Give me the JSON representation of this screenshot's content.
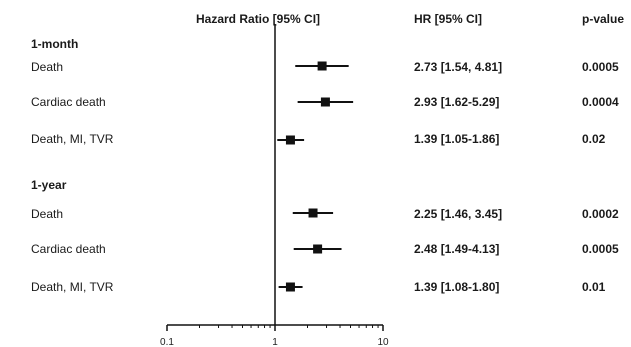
{
  "chart_data": {
    "type": "forest",
    "header": {
      "plot": "Hazard Ratio [95% CI]",
      "hr_col": "HR [95% CI]",
      "p_col": "p-value"
    },
    "xaxis": {
      "scale": "log",
      "range": [
        0.1,
        10
      ],
      "ticks": [
        "0.1",
        "1",
        "10"
      ],
      "reference_line": 1
    },
    "groups": [
      {
        "label": "1-month",
        "rows": [
          {
            "label": "Death",
            "hr": 2.73,
            "lo": 1.54,
            "hi": 4.81,
            "hr_text": "2.73 [1.54, 4.81]",
            "p": "0.0005"
          },
          {
            "label": "Cardiac death",
            "hr": 2.93,
            "lo": 1.62,
            "hi": 5.29,
            "hr_text": "2.93 [1.62-5.29]",
            "p": "0.0004"
          },
          {
            "label": "Death, MI, TVR",
            "hr": 1.39,
            "lo": 1.05,
            "hi": 1.86,
            "hr_text": "1.39 [1.05-1.86]",
            "p": "0.02"
          }
        ]
      },
      {
        "label": "1-year",
        "rows": [
          {
            "label": "Death",
            "hr": 2.25,
            "lo": 1.46,
            "hi": 3.45,
            "hr_text": "2.25 [1.46, 3.45]",
            "p": "0.0002"
          },
          {
            "label": "Cardiac death",
            "hr": 2.48,
            "lo": 1.49,
            "hi": 4.13,
            "hr_text": "2.48 [1.49-4.13]",
            "p": "0.0005"
          },
          {
            "label": "Death, MI, TVR",
            "hr": 1.39,
            "lo": 1.08,
            "hi": 1.8,
            "hr_text": "1.39 [1.08-1.80]",
            "p": "0.01"
          }
        ]
      }
    ]
  }
}
